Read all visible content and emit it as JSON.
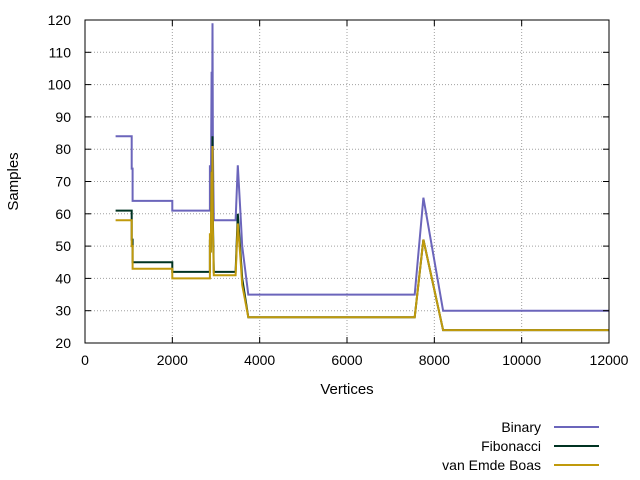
{
  "chart_data": {
    "type": "line",
    "xlabel": "Vertices",
    "ylabel": "Samples",
    "xlim": [
      0,
      12000
    ],
    "ylim": [
      20,
      120
    ],
    "xticks": [
      0,
      2000,
      4000,
      6000,
      8000,
      10000,
      12000
    ],
    "yticks": [
      20,
      30,
      40,
      50,
      60,
      70,
      80,
      90,
      100,
      110,
      120
    ],
    "grid": true,
    "legend_position": "bottom-right",
    "series": [
      {
        "name": "Binary",
        "color": "#6b65bb",
        "points": [
          [
            700,
            84
          ],
          [
            1070,
            84
          ],
          [
            1070,
            74
          ],
          [
            1090,
            74
          ],
          [
            1090,
            64
          ],
          [
            2000,
            64
          ],
          [
            2000,
            61
          ],
          [
            2860,
            61
          ],
          [
            2860,
            75
          ],
          [
            2880,
            62
          ],
          [
            2900,
            104
          ],
          [
            2910,
            84
          ],
          [
            2920,
            119
          ],
          [
            2930,
            80
          ],
          [
            2950,
            58
          ],
          [
            3450,
            58
          ],
          [
            3500,
            75
          ],
          [
            3560,
            60
          ],
          [
            3600,
            50
          ],
          [
            3740,
            35
          ],
          [
            7550,
            35
          ],
          [
            7750,
            65
          ],
          [
            8200,
            30
          ],
          [
            12000,
            30
          ]
        ]
      },
      {
        "name": "Fibonacci",
        "color": "#003322",
        "points": [
          [
            700,
            61
          ],
          [
            1070,
            61
          ],
          [
            1070,
            52
          ],
          [
            1090,
            52
          ],
          [
            1090,
            45
          ],
          [
            2000,
            45
          ],
          [
            2000,
            42
          ],
          [
            2860,
            42
          ],
          [
            2860,
            52
          ],
          [
            2880,
            48
          ],
          [
            2900,
            73
          ],
          [
            2910,
            62
          ],
          [
            2920,
            84
          ],
          [
            2930,
            58
          ],
          [
            2950,
            42
          ],
          [
            3450,
            42
          ],
          [
            3500,
            60
          ],
          [
            3560,
            48
          ],
          [
            3600,
            40
          ],
          [
            3740,
            28
          ],
          [
            7550,
            28
          ],
          [
            7750,
            52
          ],
          [
            8200,
            24
          ],
          [
            12000,
            24
          ]
        ]
      },
      {
        "name": "van Emde Boas",
        "color": "#c09a0c",
        "points": [
          [
            700,
            58
          ],
          [
            1070,
            58
          ],
          [
            1070,
            50
          ],
          [
            1090,
            50
          ],
          [
            1090,
            43
          ],
          [
            2000,
            43
          ],
          [
            2000,
            40
          ],
          [
            2860,
            40
          ],
          [
            2860,
            54
          ],
          [
            2880,
            48
          ],
          [
            2900,
            73
          ],
          [
            2910,
            60
          ],
          [
            2920,
            81
          ],
          [
            2930,
            55
          ],
          [
            2950,
            41
          ],
          [
            3450,
            41
          ],
          [
            3500,
            57
          ],
          [
            3560,
            46
          ],
          [
            3600,
            38
          ],
          [
            3740,
            28
          ],
          [
            7550,
            28
          ],
          [
            7750,
            52
          ],
          [
            8200,
            24
          ],
          [
            12000,
            24
          ]
        ]
      }
    ]
  }
}
